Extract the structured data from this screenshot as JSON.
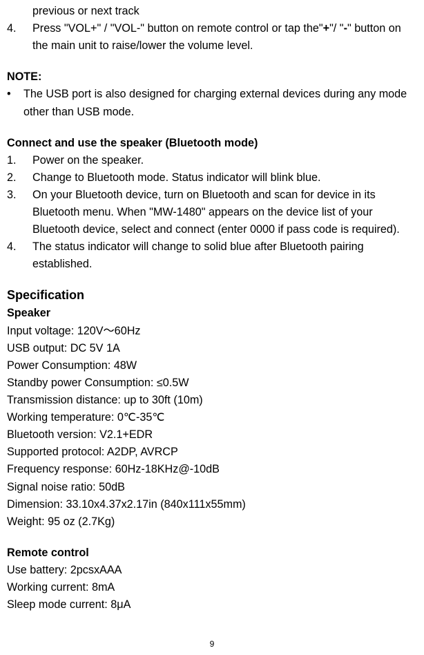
{
  "cont_line": "previous or next track",
  "step4_num": "4.",
  "step4_body_a": "Press \"VOL+\" / \"VOL-\" button on remote control or tap the\"",
  "step4_body_plus": "+",
  "step4_body_b": "\"/ \"",
  "step4_body_minus": "-",
  "step4_body_c": "\" button on the main unit to raise/lower the volume level.",
  "note_label": "NOTE:",
  "note_bullet": "•",
  "note_body": "The USB port is also designed for charging external devices during any mode other than USB mode.",
  "bt_heading": "Connect and use the speaker (Bluetooth mode)",
  "bt_steps": [
    {
      "num": "1.",
      "body": "Power on the speaker."
    },
    {
      "num": "2.",
      "body": "Change to Bluetooth mode. Status indicator will blink blue."
    },
    {
      "num": "3.",
      "body": "On your Bluetooth device, turn on Bluetooth and scan for device in its Bluetooth menu. When \"MW-1480\" appears on the device list of your Bluetooth device, select and connect (enter 0000 if pass code is required)."
    },
    {
      "num": "4.",
      "body": "The status indicator will change to solid blue after Bluetooth pairing established."
    }
  ],
  "spec_heading": "Specification",
  "speaker_label": "Speaker",
  "speaker_lines": [
    "Input voltage: 120V～60Hz",
    "USB output: DC 5V 1A",
    "Power Consumption: 48W",
    "Standby power Consumption: ≤0.5W",
    "Transmission distance: up to 30ft (10m)",
    "Working temperature: 0℃-35℃",
    "Bluetooth version: V2.1+EDR",
    "Supported protocol: A2DP, AVRCP",
    "Frequency response: 60Hz-18KHz@-10dB",
    "Signal noise ratio: 50dB",
    "Dimension: 33.10x4.37x2.17in (840x111x55mm)",
    "Weight: 95 oz (2.7Kg)"
  ],
  "remote_label": "Remote control",
  "remote_lines": [
    "Use battery: 2pcsxAAA",
    "Working current: 8mA",
    "Sleep mode current: 8μA"
  ],
  "page_number": "9"
}
